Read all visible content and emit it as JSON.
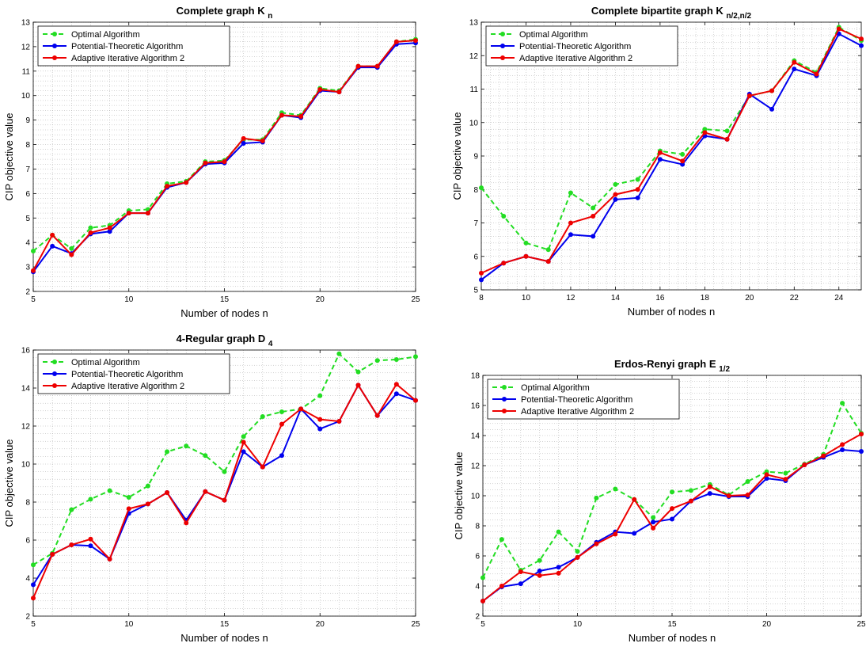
{
  "colors": {
    "optimal": "#22dd22",
    "potential": "#0000ee",
    "adaptive": "#ee0000",
    "grid": "#a9a9a9",
    "axis": "#000000"
  },
  "chart_data": [
    {
      "type": "line",
      "title": "Complete graph K",
      "title_sub": "n",
      "xlabel": "Number of nodes n",
      "ylabel": "CIP objective value",
      "xlim": [
        5,
        25
      ],
      "ylim": [
        2,
        13
      ],
      "xticks": [
        5,
        10,
        15,
        20,
        25
      ],
      "yticks": [
        2,
        3,
        4,
        5,
        6,
        7,
        8,
        9,
        10,
        11,
        12,
        13
      ],
      "grid": true,
      "legend_position": "top-left",
      "x": [
        5,
        6,
        7,
        8,
        9,
        10,
        11,
        12,
        13,
        14,
        15,
        16,
        17,
        18,
        19,
        20,
        21,
        22,
        23,
        24,
        25
      ],
      "series": [
        {
          "name": "Optimal Algorithm",
          "style": "dashed",
          "color_key": "optimal",
          "values": [
            3.65,
            4.3,
            3.75,
            4.6,
            4.7,
            5.3,
            5.35,
            6.4,
            6.5,
            7.3,
            7.35,
            8.2,
            8.2,
            9.3,
            9.2,
            10.3,
            10.2,
            11.2,
            11.2,
            12.2,
            12.3
          ]
        },
        {
          "name": "Potential-Theoretic Algorithm",
          "style": "solid",
          "color_key": "potential",
          "values": [
            2.8,
            3.85,
            3.55,
            4.35,
            4.45,
            5.2,
            5.2,
            6.25,
            6.45,
            7.2,
            7.25,
            8.05,
            8.1,
            9.2,
            9.1,
            10.2,
            10.15,
            11.15,
            11.15,
            12.1,
            12.15
          ]
        },
        {
          "name": "Adaptive Iterative Algorithm 2",
          "style": "solid",
          "color_key": "adaptive",
          "values": [
            2.85,
            4.3,
            3.5,
            4.4,
            4.6,
            5.2,
            5.2,
            6.3,
            6.45,
            7.25,
            7.3,
            8.25,
            8.15,
            9.2,
            9.15,
            10.25,
            10.15,
            11.2,
            11.2,
            12.2,
            12.25
          ]
        }
      ]
    },
    {
      "type": "line",
      "title": "Complete bipartite graph K",
      "title_sub": "n/2,n/2",
      "xlabel": "Number of nodes n",
      "ylabel": "CIP objective value",
      "xlim": [
        8,
        25
      ],
      "ylim": [
        5,
        13
      ],
      "xticks": [
        8,
        10,
        12,
        14,
        16,
        18,
        20,
        22,
        24
      ],
      "yticks": [
        5,
        6,
        7,
        8,
        9,
        10,
        11,
        12,
        13
      ],
      "grid": true,
      "legend_position": "top-left",
      "x": [
        8,
        9,
        10,
        11,
        12,
        13,
        14,
        15,
        16,
        17,
        18,
        19,
        20,
        21,
        22,
        23,
        24,
        25
      ],
      "series": [
        {
          "name": "Optimal Algorithm",
          "style": "dashed",
          "color_key": "optimal",
          "values": [
            8.05,
            7.2,
            6.4,
            6.2,
            7.9,
            7.45,
            8.15,
            8.3,
            9.15,
            9.05,
            9.8,
            9.75,
            10.8,
            10.95,
            11.85,
            11.5,
            12.85,
            12.45
          ]
        },
        {
          "name": "Potential-Theoretic Algorithm",
          "style": "solid",
          "color_key": "potential",
          "values": [
            5.3,
            5.8,
            6.0,
            5.85,
            6.65,
            6.6,
            7.7,
            7.75,
            8.9,
            8.75,
            9.6,
            9.5,
            10.85,
            10.4,
            11.6,
            11.4,
            12.65,
            12.3
          ]
        },
        {
          "name": "Adaptive Iterative Algorithm 2",
          "style": "solid",
          "color_key": "adaptive",
          "values": [
            5.5,
            5.8,
            6.0,
            5.85,
            7.0,
            7.2,
            7.85,
            8.0,
            9.1,
            8.85,
            9.7,
            9.5,
            10.8,
            10.95,
            11.8,
            11.45,
            12.8,
            12.5
          ]
        }
      ]
    },
    {
      "type": "line",
      "title": "4-Regular graph D",
      "title_sub": "4",
      "xlabel": "Number of nodes n",
      "ylabel": "CIP objective value",
      "xlim": [
        5,
        25
      ],
      "ylim": [
        2,
        16
      ],
      "xticks": [
        5,
        10,
        15,
        20,
        25
      ],
      "yticks": [
        2,
        4,
        6,
        8,
        10,
        12,
        14,
        16
      ],
      "grid": true,
      "legend_position": "top-left",
      "x": [
        5,
        6,
        7,
        8,
        9,
        10,
        11,
        12,
        13,
        14,
        15,
        16,
        17,
        18,
        19,
        20,
        21,
        22,
        23,
        24,
        25
      ],
      "series": [
        {
          "name": "Optimal Algorithm",
          "style": "dashed",
          "color_key": "optimal",
          "values": [
            4.7,
            5.3,
            7.6,
            8.15,
            8.6,
            8.25,
            8.85,
            10.65,
            10.95,
            10.45,
            9.6,
            11.45,
            12.5,
            12.75,
            12.9,
            13.6,
            15.8,
            14.85,
            15.45,
            15.5,
            15.65
          ]
        },
        {
          "name": "Potential-Theoretic Algorithm",
          "style": "solid",
          "color_key": "potential",
          "values": [
            3.65,
            5.25,
            5.75,
            5.7,
            5.0,
            7.4,
            7.9,
            8.5,
            7.05,
            8.55,
            8.1,
            10.65,
            9.85,
            10.45,
            12.9,
            11.85,
            12.25,
            14.15,
            12.55,
            13.7,
            13.35
          ]
        },
        {
          "name": "Adaptive Iterative Algorithm 2",
          "style": "solid",
          "color_key": "adaptive",
          "values": [
            2.95,
            5.25,
            5.75,
            6.05,
            5.0,
            7.65,
            7.9,
            8.5,
            6.9,
            8.55,
            8.1,
            11.15,
            9.85,
            12.1,
            12.9,
            12.35,
            12.25,
            14.15,
            12.55,
            14.2,
            13.35
          ]
        }
      ]
    },
    {
      "type": "line",
      "title": "Erdos-Renyi graph E",
      "title_sub": "1/2",
      "xlabel": "Number of nodes n",
      "ylabel": "CIP objective value",
      "xlim": [
        5,
        25
      ],
      "ylim": [
        2,
        18
      ],
      "xticks": [
        5,
        10,
        15,
        20,
        25
      ],
      "yticks": [
        2,
        4,
        6,
        8,
        10,
        12,
        14,
        16,
        18
      ],
      "grid": true,
      "legend_position": "top-left",
      "x": [
        5,
        6,
        7,
        8,
        9,
        10,
        11,
        12,
        13,
        14,
        15,
        16,
        17,
        18,
        19,
        20,
        21,
        22,
        23,
        24,
        25
      ],
      "series": [
        {
          "name": "Optimal Algorithm",
          "style": "dashed",
          "color_key": "optimal",
          "values": [
            4.55,
            7.1,
            5.05,
            5.7,
            7.6,
            6.3,
            9.85,
            10.45,
            9.75,
            8.55,
            10.25,
            10.35,
            10.75,
            10.05,
            10.95,
            11.6,
            11.5,
            12.1,
            12.75,
            16.15,
            14.15
          ]
        },
        {
          "name": "Potential-Theoretic Algorithm",
          "style": "solid",
          "color_key": "potential",
          "values": [
            3.0,
            3.95,
            4.15,
            5.0,
            5.25,
            5.9,
            6.9,
            7.6,
            7.5,
            8.25,
            8.45,
            9.65,
            10.15,
            9.95,
            9.95,
            11.15,
            11.0,
            12.05,
            12.55,
            13.05,
            12.95
          ]
        },
        {
          "name": "Adaptive Iterative Algorithm 2",
          "style": "solid",
          "color_key": "adaptive",
          "values": [
            3.0,
            4.0,
            4.95,
            4.7,
            4.85,
            5.9,
            6.8,
            7.45,
            9.75,
            7.85,
            9.15,
            9.65,
            10.6,
            10.0,
            10.05,
            11.4,
            11.1,
            12.05,
            12.65,
            13.4,
            14.1
          ]
        }
      ]
    }
  ]
}
